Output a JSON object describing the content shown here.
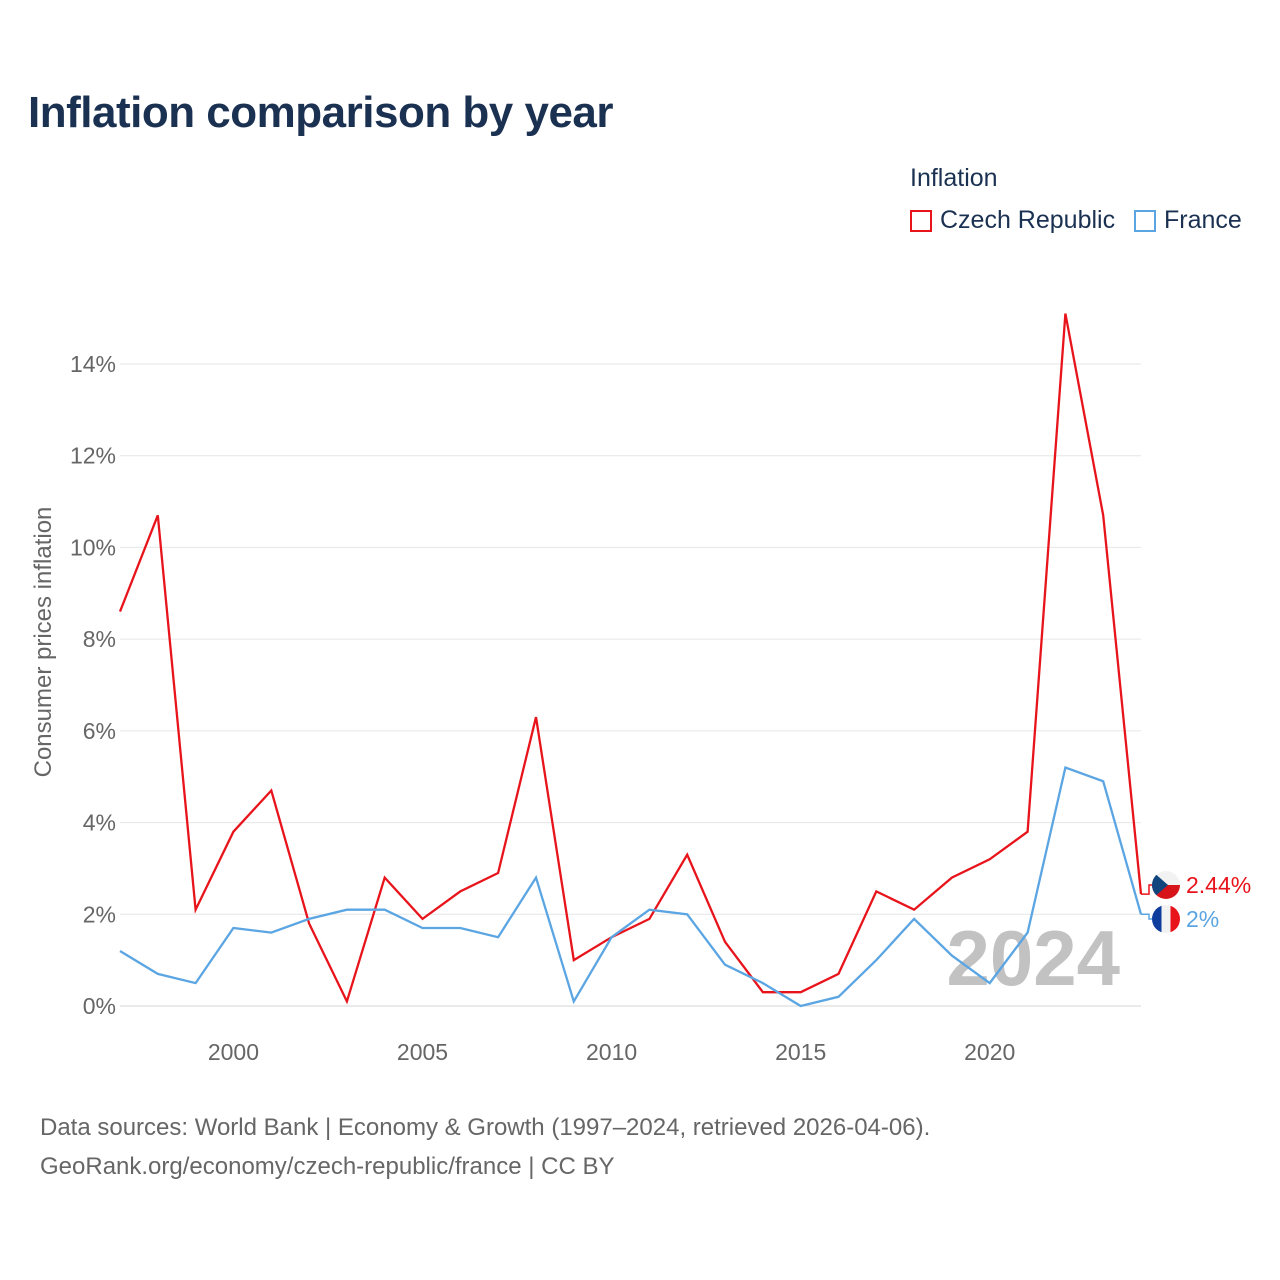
{
  "page": {
    "title": "Inflation comparison by year",
    "source_line1": "Data sources: World Bank | Economy & Growth (1997–2024, retrieved 2026-04-06).",
    "source_line2": "GeoRank.org/economy/czech-republic/france | CC BY"
  },
  "chart_data": {
    "type": "line",
    "title": "Inflation comparison by year",
    "xlabel": "",
    "ylabel": "Consumer prices inflation",
    "legend_title": "Inflation",
    "legend_position": "top-right",
    "grid": true,
    "xlim": [
      1997,
      2024
    ],
    "ylim": [
      -0.4,
      15.2
    ],
    "x_ticks": [
      2000,
      2005,
      2010,
      2015,
      2020
    ],
    "y_ticks": [
      0,
      2,
      4,
      6,
      8,
      10,
      12,
      14
    ],
    "y_tick_labels": [
      "0%",
      "2%",
      "4%",
      "6%",
      "8%",
      "10%",
      "12%",
      "14%"
    ],
    "current_year_label": "2024",
    "x": [
      1997,
      1998,
      1999,
      2000,
      2001,
      2002,
      2003,
      2004,
      2005,
      2006,
      2007,
      2008,
      2009,
      2010,
      2011,
      2012,
      2013,
      2014,
      2015,
      2016,
      2017,
      2018,
      2019,
      2020,
      2021,
      2022,
      2023,
      2024
    ],
    "series": [
      {
        "name": "Czech Republic",
        "color": "#e8141b",
        "end_label": "2.44%",
        "flag": "czech-flag",
        "values": [
          8.6,
          10.7,
          2.1,
          3.8,
          4.7,
          1.8,
          0.1,
          2.8,
          1.9,
          2.5,
          2.9,
          6.3,
          1.0,
          1.5,
          1.9,
          3.3,
          1.4,
          0.3,
          0.3,
          0.7,
          2.5,
          2.1,
          2.8,
          3.2,
          3.8,
          15.1,
          10.7,
          2.44
        ]
      },
      {
        "name": "France",
        "color": "#5ba5e3",
        "end_label": "2%",
        "flag": "france-flag",
        "values": [
          1.2,
          0.7,
          0.5,
          1.7,
          1.6,
          1.9,
          2.1,
          2.1,
          1.7,
          1.7,
          1.5,
          2.8,
          0.1,
          1.5,
          2.1,
          2.0,
          0.9,
          0.5,
          0.0,
          0.2,
          1.0,
          1.9,
          1.1,
          0.5,
          1.6,
          5.2,
          4.9,
          2.0
        ]
      }
    ]
  }
}
